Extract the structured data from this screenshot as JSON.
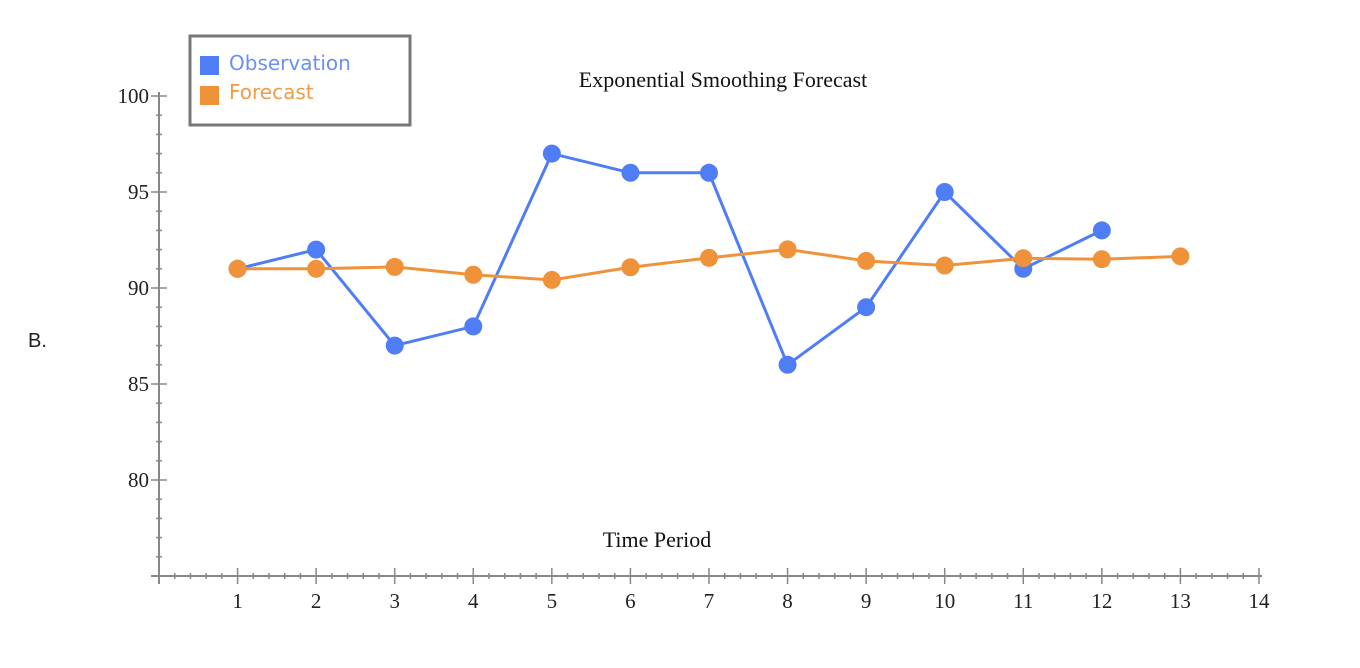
{
  "question_label": "B.",
  "chart_data": {
    "type": "line",
    "title": "Exponential Smoothing Forecast",
    "xlabel": "Time Period",
    "ylabel": "",
    "xlim": [
      0,
      14
    ],
    "ylim": [
      75,
      100
    ],
    "x_ticks": [
      1,
      2,
      3,
      4,
      5,
      6,
      7,
      8,
      9,
      10,
      11,
      12,
      13,
      14
    ],
    "y_ticks": [
      80,
      85,
      90,
      95,
      100
    ],
    "grid": false,
    "legend_placement": "top-left",
    "series": [
      {
        "name": "Observation",
        "color": "#4f7df5",
        "x": [
          1,
          2,
          3,
          4,
          5,
          6,
          7,
          8,
          9,
          10,
          11,
          12
        ],
        "values": [
          91,
          92,
          87,
          88,
          97,
          96,
          96,
          86,
          89,
          95,
          91,
          93
        ]
      },
      {
        "name": "Forecast",
        "color": "#f0923a",
        "x": [
          1,
          2,
          3,
          4,
          5,
          6,
          7,
          8,
          9,
          10,
          11,
          12,
          13
        ],
        "values": [
          91.0,
          91.0,
          91.1,
          90.69,
          90.42,
          91.08,
          91.57,
          92.01,
          91.41,
          91.17,
          91.55,
          91.5,
          91.65
        ]
      }
    ]
  }
}
